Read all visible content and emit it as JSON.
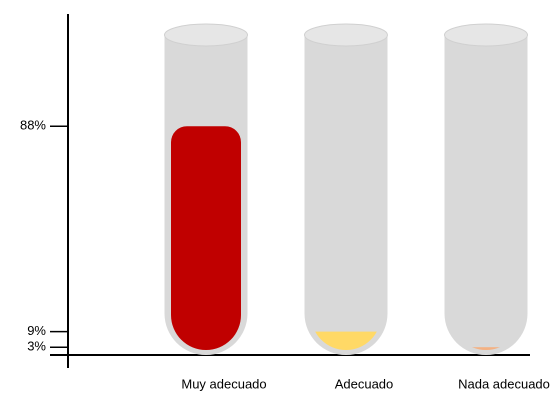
{
  "chart_data": {
    "type": "bar",
    "categories": [
      "Muy adecuado",
      "Adecuado",
      "Nada adecuado"
    ],
    "values": [
      88,
      9,
      3
    ],
    "colors": [
      "#c00000",
      "#ffd966",
      "#f4b183"
    ],
    "ylim": [
      0,
      100
    ],
    "yticks": [
      {
        "value": 3,
        "label": "3%"
      },
      {
        "value": 9,
        "label": "9%"
      },
      {
        "value": 88,
        "label": "88%"
      }
    ]
  }
}
